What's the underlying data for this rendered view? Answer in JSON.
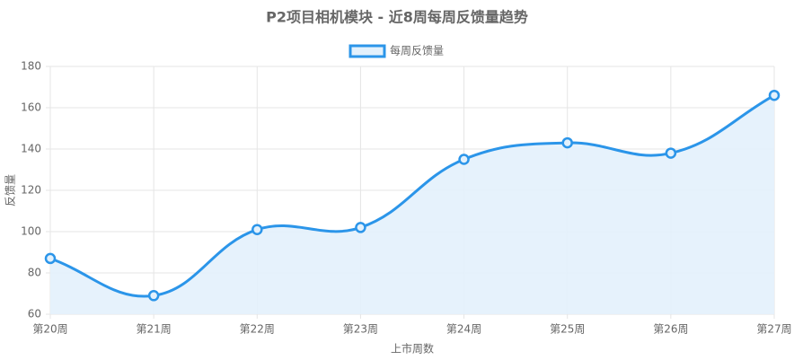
{
  "chart_data": {
    "type": "line",
    "title": "P2项目相机模块 - 近8周每周反馈量趋势",
    "categories": [
      "第20周",
      "第21周",
      "第22周",
      "第23周",
      "第24周",
      "第25周",
      "第26周",
      "第27周"
    ],
    "series": [
      {
        "name": "每周反馈量",
        "color": "#2b95e9",
        "values": [
          87,
          69,
          101,
          102,
          135,
          143,
          138,
          166
        ]
      }
    ],
    "x_label": "上市周数",
    "y_label": "反馈量",
    "ylim": [
      60,
      180
    ],
    "yticks": [
      60,
      80,
      100,
      120,
      140,
      160,
      180
    ],
    "grid": true,
    "legend": "top"
  }
}
